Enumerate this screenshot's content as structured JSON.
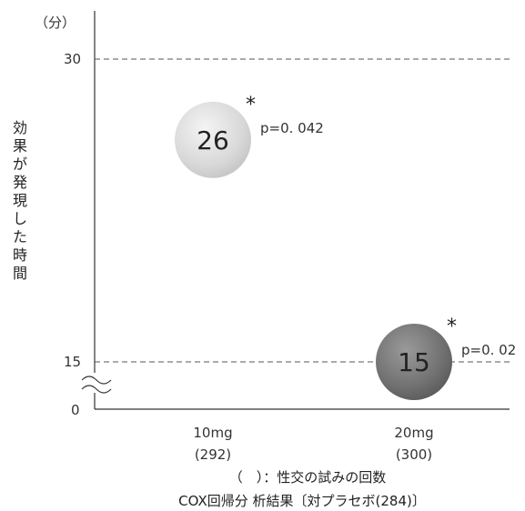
{
  "chart_data": {
    "type": "scatter",
    "y_unit": "（分）",
    "ylabel": "効果が発現した時間",
    "yticks": [
      "30",
      "15",
      "0"
    ],
    "axis_break": true,
    "categories": [
      {
        "dose": "10mg",
        "count": "(292)"
      },
      {
        "dose": "20mg",
        "count": "(300)"
      }
    ],
    "points": [
      {
        "category": "10mg",
        "value": 26,
        "label": "26",
        "p_text": "p=0. 042",
        "significance": "*",
        "color": "#d6d6d6"
      },
      {
        "category": "20mg",
        "value": 15,
        "label": "15",
        "p_text": "p=0. 02",
        "significance": "*",
        "color": "#6e6e6e"
      }
    ],
    "footnote1": "（　）：性交の試みの回数",
    "footnote2": "COX回帰分 析結果〔対プラセボ(284)〕",
    "gridlines": [
      30,
      15
    ]
  }
}
